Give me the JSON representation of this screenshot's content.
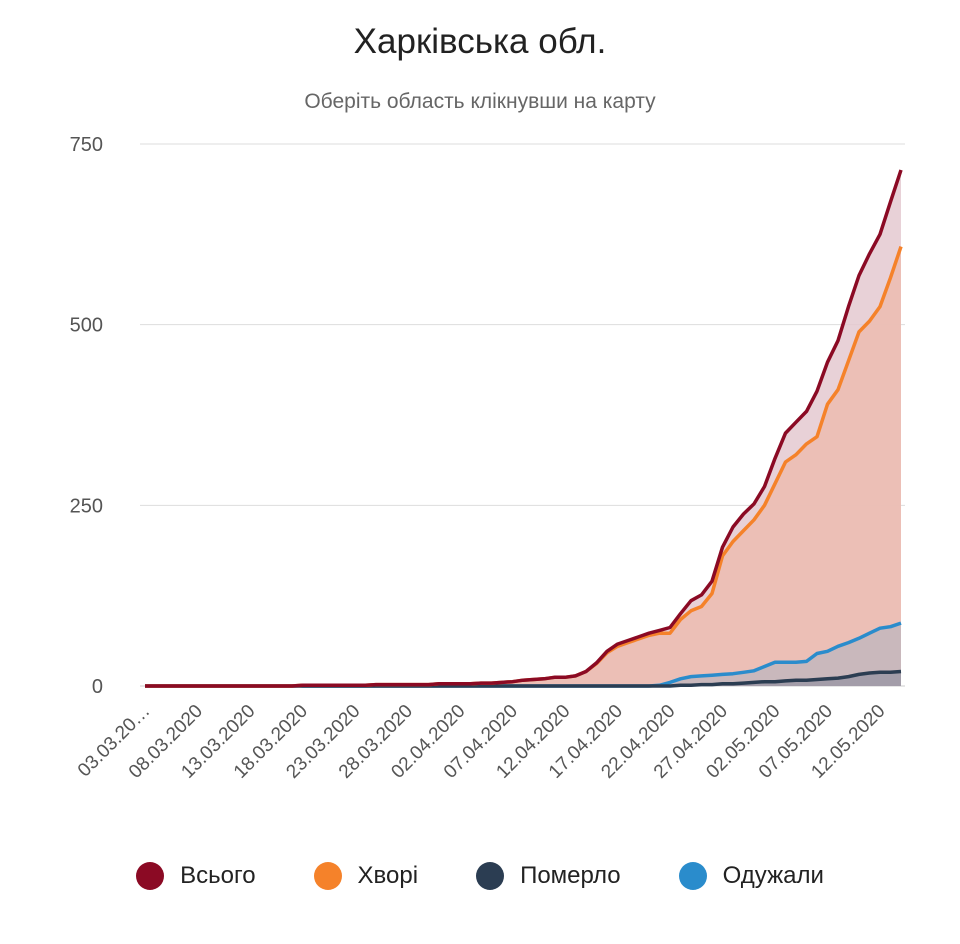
{
  "chart_data": {
    "type": "area",
    "title": "Харківська обл.",
    "subtitle": "Оберіть область клікнувши на карту",
    "xlabel": "",
    "ylabel": "",
    "ylim": [
      0,
      750
    ],
    "yticks": [
      "0",
      "250",
      "500",
      "750"
    ],
    "ytick_values": [
      0,
      250,
      500,
      750
    ],
    "grid": true,
    "legend_position": "bottom",
    "xtick_labels": [
      "03.03.20…",
      "08.03.2020",
      "13.03.2020",
      "18.03.2020",
      "23.03.2020",
      "28.03.2020",
      "02.04.2020",
      "07.04.2020",
      "12.04.2020",
      "17.04.2020",
      "22.04.2020",
      "27.04.2020",
      "02.05.2020",
      "07.05.2020",
      "12.05.2020"
    ],
    "x": [
      "03.03.2020",
      "04.03.2020",
      "05.03.2020",
      "06.03.2020",
      "07.03.2020",
      "08.03.2020",
      "09.03.2020",
      "10.03.2020",
      "11.03.2020",
      "12.03.2020",
      "13.03.2020",
      "14.03.2020",
      "15.03.2020",
      "16.03.2020",
      "17.03.2020",
      "18.03.2020",
      "19.03.2020",
      "20.03.2020",
      "21.03.2020",
      "22.03.2020",
      "23.03.2020",
      "24.03.2020",
      "25.03.2020",
      "26.03.2020",
      "27.03.2020",
      "28.03.2020",
      "29.03.2020",
      "30.03.2020",
      "31.03.2020",
      "01.04.2020",
      "02.04.2020",
      "03.04.2020",
      "04.04.2020",
      "05.04.2020",
      "06.04.2020",
      "07.04.2020",
      "08.04.2020",
      "09.04.2020",
      "10.04.2020",
      "11.04.2020",
      "12.04.2020",
      "13.04.2020",
      "14.04.2020",
      "15.04.2020",
      "16.04.2020",
      "17.04.2020",
      "18.04.2020",
      "19.04.2020",
      "20.04.2020",
      "21.04.2020",
      "22.04.2020",
      "23.04.2020",
      "24.04.2020",
      "25.04.2020",
      "26.04.2020",
      "27.04.2020",
      "28.04.2020",
      "29.04.2020",
      "30.04.2020",
      "01.05.2020",
      "02.05.2020",
      "03.05.2020",
      "04.05.2020",
      "05.05.2020",
      "06.05.2020",
      "07.05.2020",
      "08.05.2020",
      "09.05.2020",
      "10.05.2020",
      "11.05.2020",
      "12.05.2020",
      "13.05.2020",
      "14.05.2020"
    ],
    "series": [
      {
        "name": "Всього",
        "color": "#8b0a24",
        "fill": "#e4c9d0",
        "values": [
          0,
          0,
          0,
          0,
          0,
          0,
          0,
          0,
          0,
          0,
          0,
          0,
          0,
          0,
          0,
          1,
          1,
          1,
          1,
          1,
          1,
          1,
          2,
          2,
          2,
          2,
          2,
          2,
          3,
          3,
          3,
          3,
          4,
          4,
          5,
          6,
          8,
          9,
          10,
          12,
          12,
          14,
          20,
          32,
          48,
          58,
          63,
          68,
          73,
          77,
          81,
          100,
          118,
          126,
          145,
          192,
          220,
          238,
          252,
          276,
          315,
          350,
          365,
          380,
          408,
          448,
          478,
          525,
          568,
          598,
          625,
          670,
          714
        ]
      },
      {
        "name": "Хворі",
        "color": "#f5822a",
        "fill": "#ecbcb0",
        "values": [
          0,
          0,
          0,
          0,
          0,
          0,
          0,
          0,
          0,
          0,
          0,
          0,
          0,
          0,
          0,
          1,
          1,
          1,
          1,
          1,
          1,
          1,
          2,
          2,
          2,
          2,
          2,
          2,
          3,
          3,
          3,
          3,
          4,
          4,
          5,
          6,
          8,
          9,
          10,
          12,
          12,
          14,
          20,
          31,
          46,
          55,
          60,
          65,
          70,
          73,
          73,
          92,
          104,
          110,
          128,
          180,
          200,
          215,
          230,
          250,
          280,
          310,
          320,
          335,
          345,
          390,
          410,
          450,
          490,
          505,
          525,
          565,
          608
        ]
      },
      {
        "name": "Померло",
        "color": "#2b3d52",
        "fill": "#9c98a6",
        "values": [
          0,
          0,
          0,
          0,
          0,
          0,
          0,
          0,
          0,
          0,
          0,
          0,
          0,
          0,
          0,
          0,
          0,
          0,
          0,
          0,
          0,
          0,
          0,
          0,
          0,
          0,
          0,
          0,
          0,
          0,
          0,
          0,
          0,
          0,
          0,
          0,
          0,
          0,
          0,
          0,
          0,
          0,
          0,
          0,
          0,
          0,
          0,
          0,
          0,
          0,
          0,
          1,
          1,
          2,
          2,
          3,
          3,
          4,
          5,
          6,
          6,
          7,
          8,
          8,
          9,
          10,
          11,
          13,
          16,
          18,
          19,
          19,
          20
        ]
      },
      {
        "name": "Одужали",
        "color": "#2a8ccc",
        "fill": "#c3b6bd",
        "values": [
          0,
          0,
          0,
          0,
          0,
          0,
          0,
          0,
          0,
          0,
          0,
          0,
          0,
          0,
          0,
          0,
          0,
          0,
          0,
          0,
          0,
          0,
          0,
          0,
          0,
          0,
          0,
          0,
          0,
          0,
          0,
          0,
          0,
          0,
          0,
          0,
          0,
          0,
          0,
          0,
          0,
          0,
          0,
          0,
          0,
          0,
          0,
          0,
          0,
          1,
          5,
          10,
          13,
          14,
          15,
          16,
          17,
          19,
          21,
          27,
          33,
          33,
          33,
          34,
          45,
          48,
          55,
          60,
          66,
          73,
          80,
          82,
          87
        ]
      }
    ]
  }
}
